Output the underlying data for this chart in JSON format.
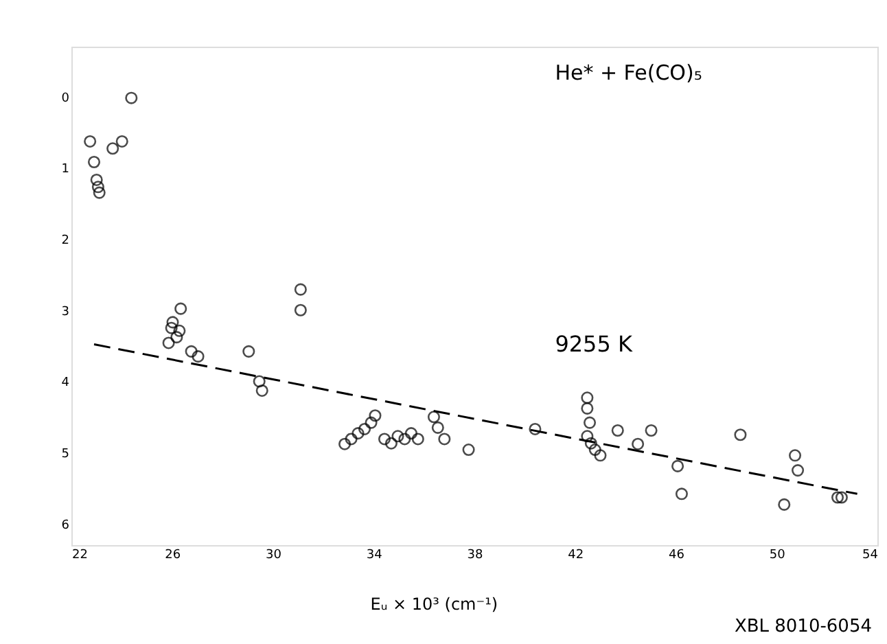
{
  "chart_data": {
    "type": "scatter",
    "title": "He* + Fe(CO)₅",
    "xlabel": "Eᵤ × 10³ (cm⁻¹)",
    "xlim": [
      22,
      54
    ],
    "xticks": [
      22,
      26,
      30,
      34,
      38,
      42,
      46,
      50,
      54
    ],
    "ylim": [
      6.3,
      -0.7
    ],
    "yticks": [
      0,
      1,
      2,
      3,
      4,
      5,
      6
    ],
    "grid": false,
    "series": [
      {
        "marker": "circle",
        "color": "#000000",
        "x": [
          22.74,
          22.9,
          23.0,
          23.06,
          23.11,
          23.64,
          24.01,
          24.38,
          25.97,
          26.02,
          26.18,
          26.29,
          25.86,
          26.34,
          26.76,
          27.03,
          29.04,
          29.46,
          29.57,
          31.1,
          31.1,
          32.85,
          33.11,
          33.38,
          33.64,
          33.9,
          34.06,
          34.43,
          34.7,
          34.96,
          35.23,
          35.49,
          35.76,
          36.39,
          36.55,
          36.81,
          37.77,
          40.41,
          42.48,
          42.48,
          42.58,
          42.48,
          42.63,
          43.0,
          42.79,
          43.69,
          44.49,
          45.02,
          46.07,
          46.23,
          48.56,
          50.3,
          50.73,
          50.84,
          52.42,
          52.58
        ],
        "values": [
          0.63,
          0.92,
          1.17,
          1.27,
          1.35,
          0.73,
          0.63,
          0.02,
          3.25,
          3.17,
          3.38,
          3.29,
          3.46,
          2.98,
          3.58,
          3.65,
          3.58,
          4.0,
          4.13,
          2.71,
          3.0,
          4.88,
          4.81,
          4.73,
          4.67,
          4.58,
          4.48,
          4.81,
          4.87,
          4.77,
          4.81,
          4.73,
          4.81,
          4.5,
          4.65,
          4.81,
          4.96,
          4.67,
          4.23,
          4.38,
          4.58,
          4.77,
          4.87,
          5.04,
          4.96,
          4.69,
          4.88,
          4.69,
          5.19,
          5.58,
          4.75,
          5.73,
          5.04,
          5.25,
          5.63,
          5.63
        ]
      },
      {
        "type": "line",
        "color": "#000000",
        "line_style": "dashed",
        "x": [
          22.9,
          53.2
        ],
        "values": [
          3.48,
          5.58
        ]
      }
    ],
    "annotations": [
      "9255 K",
      "XBL 8010-6054"
    ]
  }
}
